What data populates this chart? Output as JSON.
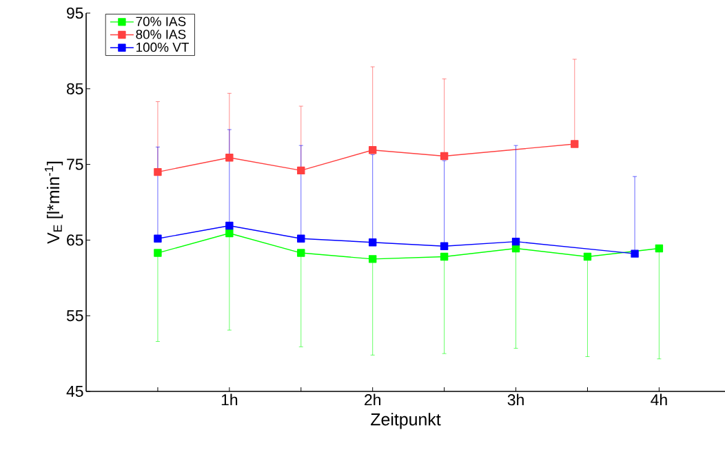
{
  "chart_data": {
    "type": "line",
    "xlabel": "Zeitpunkt",
    "ylabel": "V$_{E}$ [l*min$^{-1}$]",
    "xlim": [
      0,
      4.46
    ],
    "ylim": [
      45,
      95
    ],
    "xticks": [
      {
        "value": 0.5,
        "label": null
      },
      {
        "value": 1,
        "label": "1h"
      },
      {
        "value": 1.5,
        "label": null
      },
      {
        "value": 2,
        "label": "2h"
      },
      {
        "value": 2.5,
        "label": null
      },
      {
        "value": 3,
        "label": "3h"
      },
      {
        "value": 3.5,
        "label": null
      },
      {
        "value": 4,
        "label": "4h"
      }
    ],
    "yticks": [
      45,
      55,
      65,
      75,
      85,
      95
    ],
    "grid": false,
    "legend": "top left",
    "marker": "square",
    "line_style": "solid",
    "series": [
      {
        "name": "70% IAS",
        "color": "#00ff00",
        "x": [
          0.5,
          1,
          1.5,
          2,
          2.5,
          3,
          3.5,
          4
        ],
        "values": [
          63.3,
          65.9,
          63.3,
          62.5,
          62.8,
          63.9,
          62.8,
          63.9
        ],
        "errors": [
          [
            51.6,
            63.3
          ],
          [
            53.1,
            65.9
          ],
          [
            50.9,
            63.3
          ],
          [
            49.8,
            62.5
          ],
          [
            50.0,
            62.8
          ],
          [
            50.7,
            63.9
          ],
          [
            49.6,
            62.8
          ],
          [
            49.3,
            63.9
          ]
        ]
      },
      {
        "name": "80% IAS",
        "color": "#ff4040",
        "x": [
          0.5,
          1,
          1.5,
          2,
          2.5,
          3.41
        ],
        "values": [
          74.0,
          75.9,
          74.2,
          76.9,
          76.1,
          77.7
        ],
        "errors": [
          [
            74.0,
            83.3
          ],
          [
            75.9,
            84.4
          ],
          [
            74.2,
            82.7
          ],
          [
            76.9,
            87.9
          ],
          [
            76.1,
            86.3
          ],
          [
            77.7,
            88.9
          ]
        ]
      },
      {
        "name": "100% VT",
        "color": "#0000ff",
        "x": [
          0.5,
          1,
          1.5,
          2,
          2.5,
          3,
          3.83
        ],
        "values": [
          65.2,
          66.9,
          65.2,
          64.7,
          64.2,
          64.8,
          63.2
        ],
        "errors": [
          [
            65.2,
            77.3
          ],
          [
            66.9,
            79.6
          ],
          [
            65.2,
            77.5
          ],
          [
            64.7,
            76.3
          ],
          [
            64.2,
            75.5
          ],
          [
            64.8,
            77.5
          ],
          [
            63.2,
            73.4
          ]
        ]
      }
    ]
  }
}
